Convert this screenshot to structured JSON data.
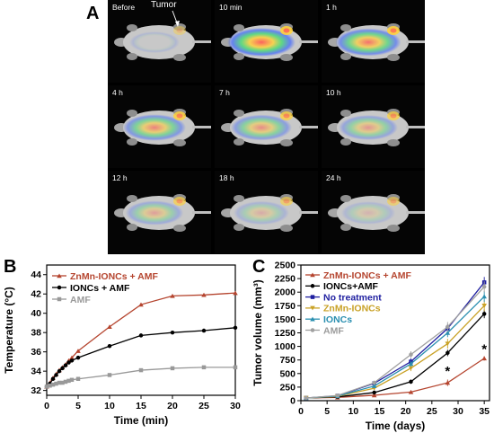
{
  "panels": {
    "a": {
      "letter": "A"
    },
    "b": {
      "letter": "B"
    },
    "c": {
      "letter": "C"
    }
  },
  "imaging": {
    "tumor_label": "Tumor",
    "tiles": [
      {
        "label": "Before",
        "signal": 0.0
      },
      {
        "label": "10 min",
        "signal": 1.0
      },
      {
        "label": "1 h",
        "signal": 0.85
      },
      {
        "label": "4 h",
        "signal": 0.7
      },
      {
        "label": "7 h",
        "signal": 0.6
      },
      {
        "label": "10 h",
        "signal": 0.5
      },
      {
        "label": "12 h",
        "signal": 0.42
      },
      {
        "label": "18 h",
        "signal": 0.3
      },
      {
        "label": "24 h",
        "signal": 0.22
      }
    ]
  },
  "chart_data": [
    {
      "type": "line",
      "xlabel": "Time (min)",
      "ylabel": "Temperature (°C)",
      "xlim": [
        0,
        30
      ],
      "ylim": [
        31.5,
        45
      ],
      "x_ticks": [
        0,
        5,
        10,
        15,
        20,
        25,
        30
      ],
      "y_ticks": [
        32,
        34,
        36,
        38,
        40,
        42,
        44
      ],
      "legend_position": "top-left",
      "series": [
        {
          "name": "ZnMn-IONCs + AMF",
          "color": "#b5452f",
          "marker": "triangle",
          "x": [
            0,
            0.5,
            1,
            1.5,
            2,
            2.5,
            3,
            3.5,
            4,
            5,
            10,
            15,
            20,
            25,
            30
          ],
          "y": [
            32.4,
            32.8,
            33.3,
            33.7,
            34.1,
            34.4,
            34.7,
            35.1,
            35.4,
            36.1,
            38.6,
            40.9,
            41.8,
            41.9,
            42.1
          ]
        },
        {
          "name": "IONCs + AMF",
          "color": "#000000",
          "marker": "circle",
          "x": [
            0,
            0.5,
            1,
            1.5,
            2,
            2.5,
            3,
            3.5,
            4,
            5,
            10,
            15,
            20,
            25,
            30
          ],
          "y": [
            32.4,
            32.7,
            33.2,
            33.6,
            34.0,
            34.3,
            34.6,
            34.9,
            35.1,
            35.4,
            36.6,
            37.7,
            38.0,
            38.2,
            38.5
          ]
        },
        {
          "name": "AMF",
          "color": "#999999",
          "marker": "square",
          "x": [
            0,
            0.5,
            1,
            1.5,
            2,
            2.5,
            3,
            3.5,
            4,
            5,
            10,
            15,
            20,
            25,
            30
          ],
          "y": [
            32.4,
            32.5,
            32.6,
            32.7,
            32.8,
            32.8,
            32.9,
            33.0,
            33.1,
            33.2,
            33.6,
            34.1,
            34.3,
            34.4,
            34.4
          ]
        }
      ]
    },
    {
      "type": "line",
      "xlabel": "Time (days)",
      "ylabel": "Tumor volume (mm³)",
      "xlim": [
        0,
        36
      ],
      "ylim": [
        0,
        2500
      ],
      "x_ticks": [
        0,
        5,
        10,
        15,
        20,
        25,
        30,
        35
      ],
      "y_ticks": [
        0,
        250,
        500,
        750,
        1000,
        1250,
        1500,
        1750,
        2000,
        2250,
        2500
      ],
      "legend_position": "top-left",
      "annotations": [
        "*",
        "*"
      ],
      "annotation_points": [
        [
          28,
          550
        ],
        [
          35,
          950
        ]
      ],
      "series": [
        {
          "name": "ZnMn-IONCs + AMF",
          "color": "#b5452f",
          "marker": "triangle",
          "x": [
            1,
            7,
            14,
            21,
            28,
            35
          ],
          "y": [
            50,
            60,
            100,
            160,
            330,
            780
          ],
          "err": [
            10,
            15,
            20,
            30,
            60,
            40
          ]
        },
        {
          "name": "IONCs+AMF",
          "color": "#000000",
          "marker": "circle",
          "x": [
            1,
            7,
            14,
            21,
            28,
            35
          ],
          "y": [
            50,
            70,
            150,
            350,
            880,
            1600
          ],
          "err": [
            10,
            15,
            25,
            40,
            60,
            80
          ]
        },
        {
          "name": "No treatment",
          "color": "#1f1fa0",
          "marker": "square",
          "x": [
            1,
            7,
            14,
            21,
            28,
            35
          ],
          "y": [
            50,
            90,
            320,
            720,
            1330,
            2180
          ],
          "err": [
            10,
            20,
            40,
            60,
            80,
            100
          ]
        },
        {
          "name": "ZnMn-IONCs",
          "color": "#c9a227",
          "marker": "triangle-down",
          "x": [
            1,
            7,
            14,
            21,
            28,
            35
          ],
          "y": [
            50,
            80,
            230,
            600,
            1050,
            1750
          ],
          "err": [
            10,
            20,
            35,
            55,
            90,
            100
          ]
        },
        {
          "name": "IONCs",
          "color": "#2a8fb0",
          "marker": "triangle",
          "x": [
            1,
            7,
            14,
            21,
            28,
            35
          ],
          "y": [
            50,
            85,
            270,
            680,
            1250,
            1920
          ],
          "err": [
            10,
            20,
            35,
            55,
            80,
            100
          ]
        },
        {
          "name": "AMF",
          "color": "#a0a0a0",
          "marker": "circle",
          "x": [
            1,
            7,
            14,
            21,
            28,
            35
          ],
          "y": [
            50,
            95,
            330,
            850,
            1360,
            2100
          ],
          "err": [
            10,
            20,
            40,
            60,
            90,
            100
          ]
        }
      ]
    }
  ]
}
